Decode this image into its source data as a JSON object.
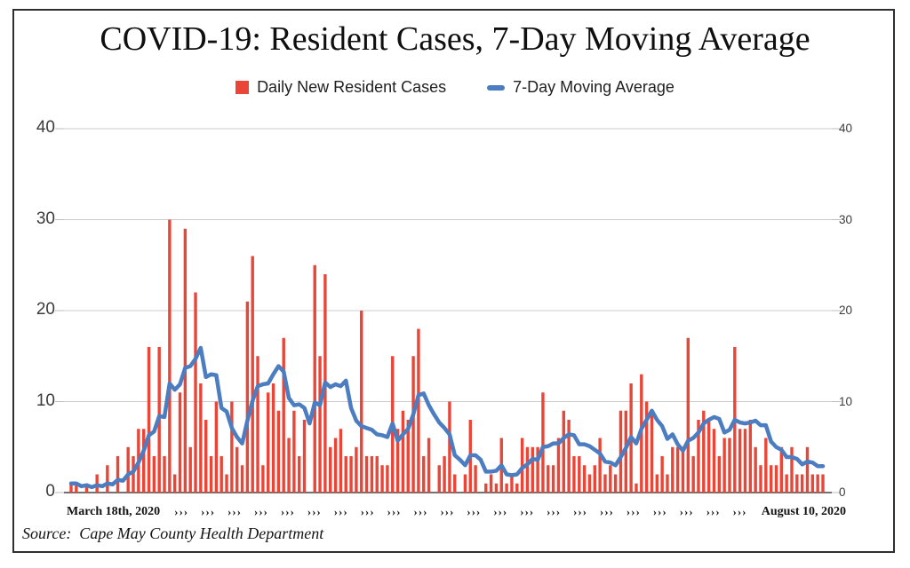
{
  "title": "COVID-19: Resident Cases, 7-Day Moving Average",
  "legend": {
    "items": [
      {
        "label": "Daily New Resident Cases",
        "swatch": "red-square",
        "color": "#e94638"
      },
      {
        "label": "7-Day Moving Average",
        "swatch": "blue-dash",
        "color": "#4b7dc0"
      }
    ]
  },
  "chart_data": {
    "type": "bar",
    "overlay": "line",
    "title": "COVID-19: Resident Cases, 7-Day Moving Average",
    "xlabel": "",
    "ylabel": "",
    "ylim": [
      0,
      40
    ],
    "y_ticks": [
      0,
      10,
      20,
      30,
      40
    ],
    "grid": true,
    "legend_position": "top-center",
    "x_axis": {
      "first_label": "March 18th, 2020",
      "last_label": "August 10, 2020",
      "separator_glyph": "›››",
      "separator_count": 22,
      "unit": "day",
      "num_days": 146
    },
    "series": [
      {
        "name": "Daily New Resident Cases",
        "type": "bar",
        "color": "#e94638",
        "values": [
          1,
          1,
          0,
          1,
          0,
          2,
          0,
          3,
          0,
          4,
          0,
          5,
          4,
          7,
          7,
          16,
          4,
          16,
          4,
          30,
          2,
          11,
          29,
          5,
          22,
          12,
          8,
          4,
          10,
          4,
          2,
          10,
          5,
          3,
          21,
          26,
          15,
          3,
          11,
          12,
          9,
          17,
          6,
          9,
          4,
          8,
          0,
          25,
          15,
          24,
          5,
          6,
          7,
          4,
          4,
          5,
          20,
          4,
          4,
          4,
          3,
          3,
          15,
          7,
          9,
          8,
          15,
          18,
          4,
          6,
          0,
          3,
          4,
          10,
          2,
          0,
          2,
          8,
          3,
          0,
          1,
          2,
          1,
          6,
          1,
          2,
          1,
          6,
          5,
          5,
          5,
          11,
          3,
          3,
          6,
          9,
          8,
          4,
          4,
          3,
          2,
          3,
          6,
          2,
          3,
          2,
          9,
          9,
          12,
          1,
          13,
          10,
          9,
          2,
          4,
          2,
          5,
          5,
          5,
          17,
          4,
          8,
          9,
          8,
          7,
          4,
          6,
          6,
          16,
          7,
          7,
          8,
          5,
          3,
          6,
          3,
          3,
          5,
          2,
          5,
          2,
          2,
          5,
          2,
          2,
          2
        ]
      },
      {
        "name": "7-Day Moving Average",
        "type": "line",
        "color": "#4b7dc0",
        "derivation": "trailing 7-day mean of Daily New Resident Cases",
        "values": [
          1.0,
          1.0,
          0.7,
          0.8,
          0.6,
          0.8,
          0.7,
          1.0,
          0.9,
          1.4,
          1.3,
          2.0,
          2.3,
          3.3,
          4.6,
          6.3,
          6.7,
          8.4,
          8.3,
          12.0,
          11.3,
          11.9,
          13.7,
          13.9,
          14.7,
          15.9,
          12.7,
          13.0,
          12.9,
          9.3,
          8.9,
          7.1,
          6.1,
          5.4,
          7.9,
          10.1,
          11.7,
          11.9,
          12.0,
          13.0,
          13.9,
          13.3,
          10.4,
          9.6,
          9.7,
          9.3,
          7.6,
          9.9,
          9.6,
          12.1,
          11.6,
          11.9,
          11.7,
          12.3,
          9.3,
          7.9,
          7.3,
          7.1,
          6.9,
          6.4,
          6.3,
          6.1,
          7.6,
          5.7,
          6.4,
          7.0,
          8.6,
          10.7,
          10.9,
          9.6,
          8.6,
          7.7,
          7.1,
          6.4,
          4.1,
          3.6,
          3.0,
          4.1,
          4.1,
          3.6,
          2.3,
          2.3,
          2.4,
          3.0,
          2.0,
          1.9,
          2.0,
          2.7,
          3.1,
          3.7,
          3.6,
          5.0,
          5.1,
          5.4,
          5.4,
          6.0,
          6.4,
          6.3,
          5.3,
          5.3,
          5.1,
          4.7,
          4.3,
          3.4,
          3.3,
          3.0,
          3.9,
          4.9,
          6.1,
          5.4,
          7.0,
          8.0,
          9.0,
          8.0,
          7.3,
          5.9,
          6.4,
          5.3,
          4.6,
          5.7,
          6.0,
          6.6,
          7.6,
          8.0,
          8.3,
          8.1,
          6.6,
          6.9,
          8.0,
          7.7,
          7.6,
          7.7,
          7.9,
          7.4,
          7.4,
          5.6,
          5.0,
          4.7,
          3.9,
          3.9,
          3.7,
          3.1,
          3.4,
          3.3,
          2.9,
          2.9
        ]
      }
    ],
    "colors": {
      "bar": "#e94638",
      "line": "#4b7dc0",
      "grid": "#cccccc",
      "axis": "#444444",
      "border": "#2f2f2f"
    }
  },
  "source_line": "Source:  Cape May County Health Department"
}
